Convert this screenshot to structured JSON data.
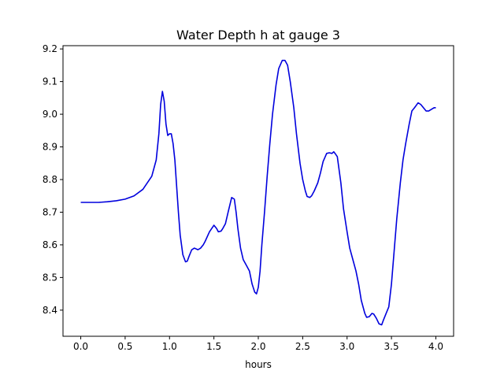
{
  "chart_data": {
    "type": "line",
    "title": "Water Depth h at gauge 3",
    "xlabel": "hours",
    "ylabel": "",
    "xlim": [
      -0.2,
      4.2
    ],
    "ylim": [
      8.32,
      9.21
    ],
    "xticks": [
      "0.0",
      "0.5",
      "1.0",
      "1.5",
      "2.0",
      "2.5",
      "3.0",
      "3.5",
      "4.0"
    ],
    "yticks": [
      "8.4",
      "8.5",
      "8.6",
      "8.7",
      "8.8",
      "8.9",
      "9.0",
      "9.1",
      "9.2"
    ],
    "grid": false,
    "colors": {
      "line": "#0000dd"
    },
    "series": [
      {
        "x": [
          0.0,
          0.1,
          0.2,
          0.3,
          0.4,
          0.5,
          0.6,
          0.7,
          0.8,
          0.85,
          0.88,
          0.9,
          0.92,
          0.94,
          0.96,
          0.98,
          1.0,
          1.02,
          1.04,
          1.06,
          1.08,
          1.1,
          1.12,
          1.15,
          1.18,
          1.2,
          1.22,
          1.25,
          1.28,
          1.32,
          1.35,
          1.38,
          1.4,
          1.45,
          1.5,
          1.53,
          1.55,
          1.58,
          1.6,
          1.63,
          1.66,
          1.7,
          1.73,
          1.75,
          1.77,
          1.8,
          1.83,
          1.86,
          1.9,
          1.93,
          1.96,
          1.98,
          2.0,
          2.02,
          2.04,
          2.07,
          2.1,
          2.13,
          2.16,
          2.2,
          2.23,
          2.27,
          2.3,
          2.33,
          2.36,
          2.4,
          2.43,
          2.47,
          2.5,
          2.53,
          2.55,
          2.58,
          2.6,
          2.63,
          2.67,
          2.7,
          2.73,
          2.77,
          2.8,
          2.83,
          2.85,
          2.87,
          2.89,
          2.9,
          2.93,
          2.96,
          3.0,
          3.03,
          3.06,
          3.1,
          3.13,
          3.16,
          3.2,
          3.22,
          3.25,
          3.28,
          3.3,
          3.33,
          3.36,
          3.39,
          3.41,
          3.44,
          3.47,
          3.5,
          3.53,
          3.56,
          3.6,
          3.63,
          3.66,
          3.7,
          3.73,
          3.76,
          3.8,
          3.83,
          3.86,
          3.89,
          3.92,
          3.95,
          3.98,
          4.0
        ],
        "y": [
          8.73,
          8.73,
          8.73,
          8.732,
          8.735,
          8.74,
          8.75,
          8.77,
          8.81,
          8.86,
          8.94,
          9.03,
          9.07,
          9.04,
          8.97,
          8.935,
          8.94,
          8.94,
          8.91,
          8.86,
          8.78,
          8.7,
          8.63,
          8.57,
          8.548,
          8.55,
          8.565,
          8.585,
          8.59,
          8.585,
          8.59,
          8.6,
          8.61,
          8.64,
          8.66,
          8.65,
          8.64,
          8.642,
          8.65,
          8.665,
          8.7,
          8.745,
          8.74,
          8.7,
          8.65,
          8.59,
          8.555,
          8.54,
          8.52,
          8.48,
          8.455,
          8.45,
          8.47,
          8.52,
          8.6,
          8.7,
          8.81,
          8.91,
          9.0,
          9.09,
          9.14,
          9.165,
          9.165,
          9.15,
          9.1,
          9.02,
          8.94,
          8.85,
          8.8,
          8.765,
          8.748,
          8.745,
          8.75,
          8.765,
          8.79,
          8.82,
          8.855,
          8.88,
          8.882,
          8.88,
          8.885,
          8.878,
          8.87,
          8.85,
          8.79,
          8.71,
          8.64,
          8.59,
          8.56,
          8.52,
          8.48,
          8.43,
          8.39,
          8.378,
          8.38,
          8.39,
          8.388,
          8.375,
          8.358,
          8.355,
          8.37,
          8.39,
          8.41,
          8.48,
          8.58,
          8.68,
          8.79,
          8.86,
          8.91,
          8.97,
          9.01,
          9.02,
          9.035,
          9.03,
          9.02,
          9.01,
          9.01,
          9.015,
          9.02,
          9.02
        ]
      }
    ]
  }
}
